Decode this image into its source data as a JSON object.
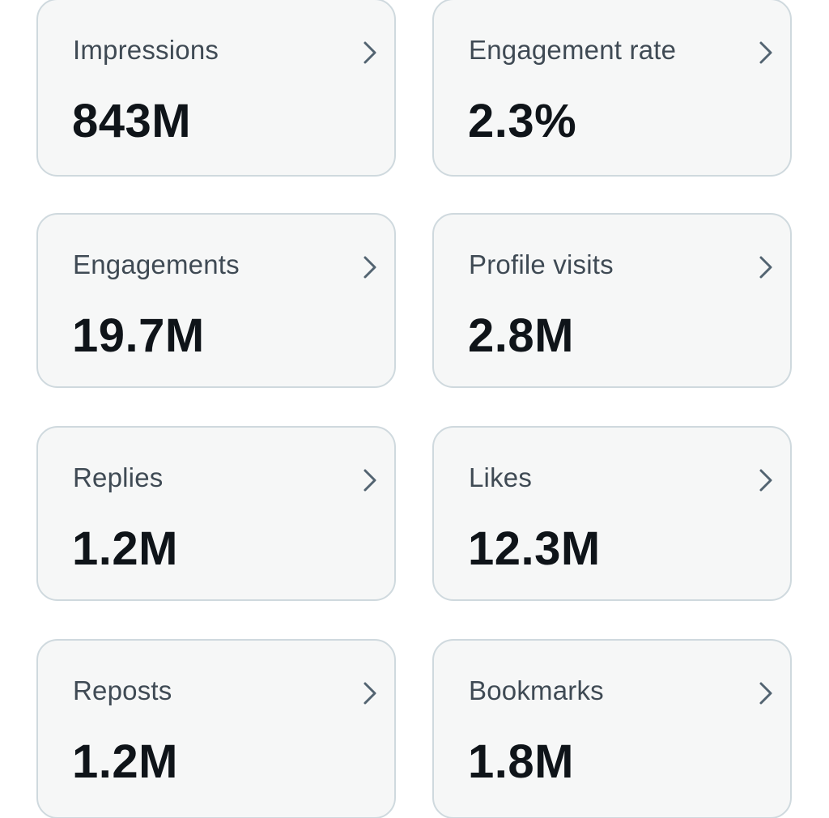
{
  "metrics": [
    {
      "label": "Impressions",
      "value": "843M",
      "icon": "chevron-right-icon"
    },
    {
      "label": "Engagement rate",
      "value": "2.3%",
      "icon": "chevron-right-icon"
    },
    {
      "label": "Engagements",
      "value": "19.7M",
      "icon": "chevron-right-icon"
    },
    {
      "label": "Profile visits",
      "value": "2.8M",
      "icon": "chevron-right-icon"
    },
    {
      "label": "Replies",
      "value": "1.2M",
      "icon": "chevron-right-icon"
    },
    {
      "label": "Likes",
      "value": "12.3M",
      "icon": "chevron-right-icon"
    },
    {
      "label": "Reposts",
      "value": "1.2M",
      "icon": "chevron-right-icon"
    },
    {
      "label": "Bookmarks",
      "value": "1.8M",
      "icon": "chevron-right-icon"
    }
  ],
  "colors": {
    "card_background": "#f6f7f7",
    "card_border": "#cfd9de",
    "label_text": "#3f4a54",
    "value_text": "#0f1419",
    "chevron": "#536471"
  }
}
